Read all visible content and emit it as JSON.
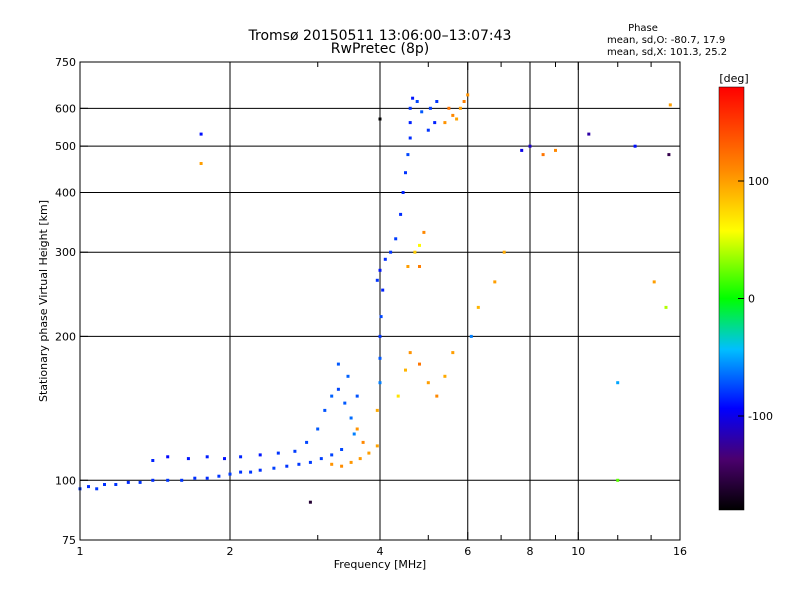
{
  "chart_data": {
    "type": "scatter",
    "title": "Tromsø 20150511 13:06:00–13:07:43",
    "subtitle": "RwPretec (8p)",
    "xlabel": "Frequency [MHz]",
    "ylabel": "Stationary phase Virtual Height [km]",
    "x_scale": "log",
    "y_scale": "log",
    "xlim": [
      1,
      16
    ],
    "ylim": [
      75,
      750
    ],
    "x_ticks": [
      1,
      2,
      4,
      6,
      8,
      10,
      16
    ],
    "x_tick_labels": [
      "1",
      "2",
      "4",
      "6",
      "8",
      "10",
      "16"
    ],
    "x_minor_ticks": [
      3,
      5,
      7,
      9,
      12,
      14
    ],
    "y_ticks": [
      75,
      100,
      200,
      300,
      400,
      500,
      600,
      750
    ],
    "y_tick_labels": [
      "75",
      "100",
      "200",
      "300",
      "400",
      "500",
      "600",
      "750"
    ],
    "grid": true,
    "phase_stats": {
      "heading": "Phase",
      "line_o": "mean, sd,O: -80.7, 17.9",
      "line_x": "mean, sd,X: 101.3, 25.2"
    },
    "colorbar": {
      "label": "[deg]",
      "range": [
        -180,
        180
      ],
      "tick_values": [
        100,
        0,
        -100
      ],
      "tick_labels": [
        "100",
        "0",
        "-100"
      ]
    },
    "series": [
      {
        "values_are": "[frequency MHz, virtual height km, phase deg]",
        "points": [
          [
            1.0,
            96,
            -80
          ],
          [
            1.04,
            97,
            -82
          ],
          [
            1.08,
            96,
            -79
          ],
          [
            1.12,
            98,
            -81
          ],
          [
            1.18,
            98,
            -80
          ],
          [
            1.25,
            99,
            -83
          ],
          [
            1.32,
            99,
            -80
          ],
          [
            1.4,
            100,
            -82
          ],
          [
            1.5,
            100,
            -79
          ],
          [
            1.6,
            100,
            -80
          ],
          [
            1.7,
            101,
            -81
          ],
          [
            1.8,
            101,
            -82
          ],
          [
            1.9,
            102,
            -80
          ],
          [
            2.0,
            103,
            -78
          ],
          [
            2.1,
            104,
            -80
          ],
          [
            2.2,
            104,
            -79
          ],
          [
            2.3,
            105,
            -81
          ],
          [
            2.45,
            106,
            -77
          ],
          [
            2.6,
            107,
            -80
          ],
          [
            2.75,
            108,
            -79
          ],
          [
            2.9,
            109,
            -78
          ],
          [
            3.05,
            111,
            -77
          ],
          [
            3.2,
            113,
            -76
          ],
          [
            3.35,
            116,
            -75
          ],
          [
            1.4,
            110,
            -85
          ],
          [
            1.5,
            112,
            -92
          ],
          [
            1.65,
            111,
            -88
          ],
          [
            1.8,
            112,
            -86
          ],
          [
            1.95,
            111,
            -90
          ],
          [
            2.1,
            112,
            -84
          ],
          [
            2.3,
            113,
            -88
          ],
          [
            2.5,
            114,
            -80
          ],
          [
            2.7,
            115,
            -78
          ],
          [
            2.85,
            120,
            -75
          ],
          [
            3.0,
            128,
            -70
          ],
          [
            3.1,
            140,
            -72
          ],
          [
            3.2,
            150,
            -68
          ],
          [
            3.3,
            155,
            -75
          ],
          [
            3.4,
            145,
            -70
          ],
          [
            3.5,
            135,
            -65
          ],
          [
            3.6,
            150,
            -72
          ],
          [
            3.45,
            165,
            -68
          ],
          [
            3.3,
            175,
            -70
          ],
          [
            3.55,
            125,
            -60
          ],
          [
            3.2,
            108,
            105
          ],
          [
            3.35,
            107,
            108
          ],
          [
            3.5,
            109,
            103
          ],
          [
            3.65,
            111,
            102
          ],
          [
            3.8,
            114,
            100
          ],
          [
            3.95,
            118,
            98
          ],
          [
            3.7,
            120,
            110
          ],
          [
            3.6,
            128,
            105
          ],
          [
            3.95,
            140,
            95
          ],
          [
            4.0,
            160,
            -60
          ],
          [
            4.0,
            180,
            -70
          ],
          [
            4.0,
            200,
            -80
          ],
          [
            4.02,
            220,
            -75
          ],
          [
            4.05,
            250,
            -85
          ],
          [
            3.95,
            262,
            -80
          ],
          [
            4.0,
            275,
            -88
          ],
          [
            4.1,
            290,
            -82
          ],
          [
            4.2,
            300,
            -80
          ],
          [
            4.3,
            320,
            -78
          ],
          [
            4.4,
            360,
            -82
          ],
          [
            4.45,
            400,
            -85
          ],
          [
            4.5,
            440,
            -80
          ],
          [
            4.55,
            480,
            -75
          ],
          [
            4.6,
            520,
            -82
          ],
          [
            4.6,
            560,
            -85
          ],
          [
            4.6,
            600,
            -80
          ],
          [
            4.65,
            630,
            -88
          ],
          [
            4.75,
            620,
            -75
          ],
          [
            4.85,
            590,
            -70
          ],
          [
            5.0,
            540,
            -80
          ],
          [
            5.05,
            600,
            -78
          ],
          [
            5.15,
            560,
            -85
          ],
          [
            5.2,
            620,
            -80
          ],
          [
            4.55,
            280,
            100
          ],
          [
            4.7,
            300,
            80
          ],
          [
            4.8,
            310,
            60
          ],
          [
            4.9,
            330,
            110
          ],
          [
            4.8,
            280,
            115
          ],
          [
            4.35,
            150,
            70
          ],
          [
            4.5,
            170,
            90
          ],
          [
            4.6,
            185,
            105
          ],
          [
            4.8,
            175,
            120
          ],
          [
            5.0,
            160,
            100
          ],
          [
            5.2,
            150,
            110
          ],
          [
            5.4,
            165,
            95
          ],
          [
            5.6,
            185,
            100
          ],
          [
            5.4,
            560,
            105
          ],
          [
            5.6,
            580,
            110
          ],
          [
            5.8,
            600,
            100
          ],
          [
            5.9,
            620,
            115
          ],
          [
            5.5,
            600,
            120
          ],
          [
            5.7,
            570,
            98
          ],
          [
            6.0,
            640,
            105
          ],
          [
            6.1,
            200,
            -60
          ],
          [
            6.3,
            230,
            90
          ],
          [
            6.8,
            260,
            100
          ],
          [
            7.1,
            300,
            95
          ],
          [
            7.7,
            490,
            -100
          ],
          [
            8.0,
            500,
            -110
          ],
          [
            8.5,
            480,
            120
          ],
          [
            9.0,
            490,
            110
          ],
          [
            10.5,
            530,
            -120
          ],
          [
            12.0,
            160,
            -50
          ],
          [
            13.0,
            500,
            -90
          ],
          [
            14.2,
            260,
            100
          ],
          [
            15.0,
            230,
            40
          ],
          [
            15.2,
            480,
            -150
          ],
          [
            15.3,
            610,
            100
          ],
          [
            1.75,
            530,
            -90
          ],
          [
            1.75,
            460,
            100
          ],
          [
            2.9,
            90,
            -160
          ],
          [
            12.0,
            100,
            20
          ],
          [
            4.0,
            570,
            -180
          ]
        ]
      }
    ]
  }
}
